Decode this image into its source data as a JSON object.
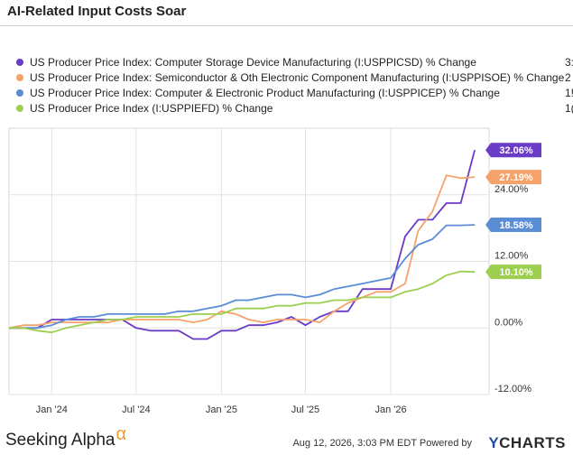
{
  "title": "AI-Related Input Costs Soar",
  "footer": {
    "brand": "Seeking Alpha",
    "brand_mark": "α",
    "timestamp": "Aug 12, 2026, 3:03 PM EDT Powered by",
    "ycharts_y": "Y",
    "ycharts_rest": "CHARTS"
  },
  "chart_data": {
    "type": "line",
    "title": "AI-Related Input Costs Soar",
    "x_axis": {
      "type": "date",
      "range": [
        "2023-10-01",
        "2026-08-01"
      ],
      "ticks": [
        {
          "date": "2024-01-01",
          "label": "Jan '24"
        },
        {
          "date": "2024-07-01",
          "label": "Jul '24"
        },
        {
          "date": "2025-01-01",
          "label": "Jan '25"
        },
        {
          "date": "2025-07-01",
          "label": "Jul '25"
        },
        {
          "date": "2026-01-01",
          "label": "Jan '26"
        }
      ]
    },
    "y_axis": {
      "range": [
        -12,
        36
      ],
      "ticks": [
        {
          "value": -12,
          "label": "-12.00%"
        },
        {
          "value": 0,
          "label": "0.00%"
        },
        {
          "value": 12,
          "label": "12.00%"
        },
        {
          "value": 24,
          "label": "24.00%"
        }
      ],
      "gridlines": true,
      "position": "right"
    },
    "legend_placement": "top",
    "series": [
      {
        "name": "US Producer Price Index: Computer Storage Device Manufacturing (I:USPPICSD) % Change",
        "legend_value": "3:",
        "end_label": "32.06%",
        "color": "#6a3bc6",
        "x": [
          "2023-10-01",
          "2023-11-01",
          "2023-12-01",
          "2024-01-01",
          "2024-02-01",
          "2024-03-01",
          "2024-04-01",
          "2024-05-01",
          "2024-06-01",
          "2024-07-01",
          "2024-08-01",
          "2024-09-01",
          "2024-10-01",
          "2024-11-01",
          "2024-12-01",
          "2025-01-01",
          "2025-02-01",
          "2025-03-01",
          "2025-04-01",
          "2025-05-01",
          "2025-06-01",
          "2025-07-01",
          "2025-08-01",
          "2025-09-01",
          "2025-10-01",
          "2025-11-01",
          "2025-12-01",
          "2026-01-01",
          "2026-02-01",
          "2026-03-01",
          "2026-04-01",
          "2026-05-01",
          "2026-06-01",
          "2026-07-01"
        ],
        "y": [
          0.0,
          0.0,
          0.0,
          1.5,
          1.5,
          1.5,
          1.5,
          1.5,
          1.5,
          0.0,
          -0.5,
          -0.5,
          -0.5,
          -2.0,
          -2.0,
          -0.5,
          -0.5,
          0.5,
          0.5,
          1.0,
          2.0,
          0.5,
          2.0,
          3.0,
          3.0,
          7.0,
          7.0,
          7.0,
          16.5,
          19.5,
          19.5,
          22.5,
          22.5,
          32.06
        ]
      },
      {
        "name": "US Producer Price Index: Semiconductor & Oth Electronic Component Manufacturing (I:USPPISOE) % Change",
        "legend_value": "2",
        "end_label": "27.19%",
        "color": "#f5a26b",
        "x": [
          "2023-10-01",
          "2023-11-01",
          "2023-12-01",
          "2024-01-01",
          "2024-02-01",
          "2024-03-01",
          "2024-04-01",
          "2024-05-01",
          "2024-06-01",
          "2024-07-01",
          "2024-08-01",
          "2024-09-01",
          "2024-10-01",
          "2024-11-01",
          "2024-12-01",
          "2025-01-01",
          "2025-02-01",
          "2025-03-01",
          "2025-04-01",
          "2025-05-01",
          "2025-06-01",
          "2025-07-01",
          "2025-08-01",
          "2025-09-01",
          "2025-10-01",
          "2025-11-01",
          "2025-12-01",
          "2026-01-01",
          "2026-02-01",
          "2026-03-01",
          "2026-04-01",
          "2026-05-01",
          "2026-06-01",
          "2026-07-01"
        ],
        "y": [
          0.0,
          0.5,
          0.5,
          1.0,
          1.0,
          1.0,
          1.0,
          1.0,
          1.5,
          1.5,
          1.5,
          1.5,
          1.5,
          1.0,
          1.5,
          3.0,
          2.5,
          1.5,
          1.0,
          1.5,
          1.5,
          1.5,
          1.0,
          3.0,
          4.5,
          5.5,
          6.5,
          6.5,
          8.0,
          17.5,
          21.0,
          27.5,
          27.0,
          27.19
        ]
      },
      {
        "name": "US Producer Price Index: Computer & Electronic Product Manufacturing (I:USPPICEP) % Change",
        "legend_value": "1!",
        "end_label": "18.58%",
        "color": "#5a8dd6",
        "x": [
          "2023-10-01",
          "2023-11-01",
          "2023-12-01",
          "2024-01-01",
          "2024-02-01",
          "2024-03-01",
          "2024-04-01",
          "2024-05-01",
          "2024-06-01",
          "2024-07-01",
          "2024-08-01",
          "2024-09-01",
          "2024-10-01",
          "2024-11-01",
          "2024-12-01",
          "2025-01-01",
          "2025-02-01",
          "2025-03-01",
          "2025-04-01",
          "2025-05-01",
          "2025-06-01",
          "2025-07-01",
          "2025-08-01",
          "2025-09-01",
          "2025-10-01",
          "2025-11-01",
          "2025-12-01",
          "2026-01-01",
          "2026-02-01",
          "2026-03-01",
          "2026-04-01",
          "2026-05-01",
          "2026-06-01",
          "2026-07-01"
        ],
        "y": [
          0.0,
          0.0,
          0.0,
          0.5,
          1.5,
          2.0,
          2.0,
          2.5,
          2.5,
          2.5,
          2.5,
          2.5,
          3.0,
          3.0,
          3.5,
          4.0,
          5.0,
          5.0,
          5.5,
          6.0,
          6.0,
          5.5,
          6.0,
          7.0,
          7.5,
          8.0,
          8.5,
          9.0,
          12.5,
          15.0,
          16.0,
          18.5,
          18.5,
          18.58
        ]
      },
      {
        "name": "US Producer Price Index (I:USPPIEFD) % Change",
        "legend_value": "1(",
        "end_label": "10.10%",
        "color": "#9ccf4f",
        "x": [
          "2023-10-01",
          "2023-11-01",
          "2023-12-01",
          "2024-01-01",
          "2024-02-01",
          "2024-03-01",
          "2024-04-01",
          "2024-05-01",
          "2024-06-01",
          "2024-07-01",
          "2024-08-01",
          "2024-09-01",
          "2024-10-01",
          "2024-11-01",
          "2024-12-01",
          "2025-01-01",
          "2025-02-01",
          "2025-03-01",
          "2025-04-01",
          "2025-05-01",
          "2025-06-01",
          "2025-07-01",
          "2025-08-01",
          "2025-09-01",
          "2025-10-01",
          "2025-11-01",
          "2025-12-01",
          "2026-01-01",
          "2026-02-01",
          "2026-03-01",
          "2026-04-01",
          "2026-05-01",
          "2026-06-01",
          "2026-07-01"
        ],
        "y": [
          0.0,
          0.0,
          -0.5,
          -0.8,
          0.0,
          0.5,
          1.0,
          1.5,
          1.5,
          2.0,
          2.0,
          2.0,
          2.0,
          2.5,
          2.5,
          2.5,
          3.5,
          3.5,
          3.5,
          4.0,
          4.0,
          4.5,
          4.5,
          5.0,
          5.0,
          5.5,
          5.5,
          5.5,
          6.5,
          7.0,
          8.0,
          9.5,
          10.2,
          10.1
        ]
      }
    ]
  }
}
